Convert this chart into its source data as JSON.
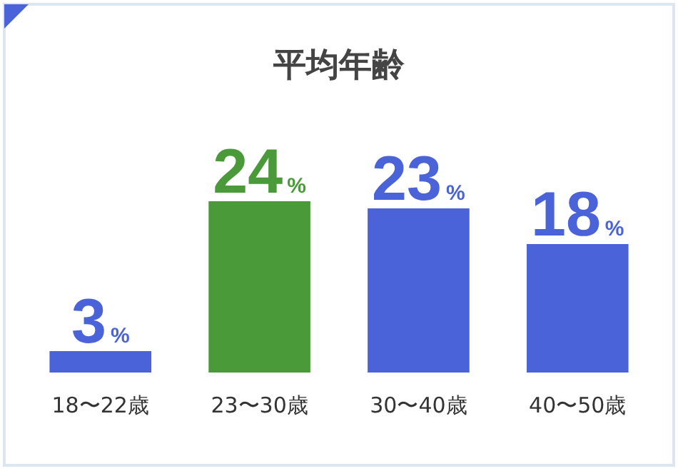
{
  "chart_data": {
    "type": "bar",
    "title": "平均年齢",
    "categories": [
      "18〜22歳",
      "23〜30歳",
      "30〜40歳",
      "40〜50歳"
    ],
    "values": [
      3,
      24,
      23,
      18
    ],
    "colors": [
      "#4a63d8",
      "#4a9a3a",
      "#4a63d8",
      "#4a63d8"
    ],
    "value_labels": [
      "3%",
      "24%",
      "23%",
      "18%"
    ],
    "relative": false
  }
}
